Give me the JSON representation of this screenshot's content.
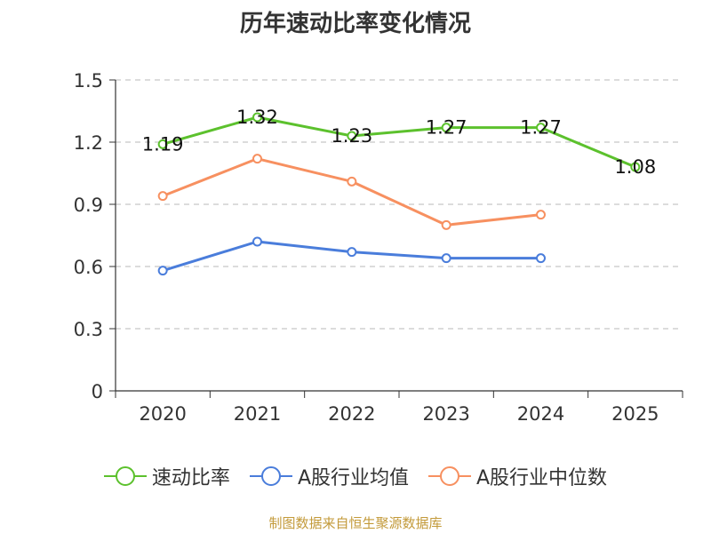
{
  "chart_data": {
    "type": "line",
    "title": "历年速动比率变化情况",
    "categories": [
      "2020",
      "2021",
      "2022",
      "2023",
      "2024",
      "2025"
    ],
    "ylim": [
      0,
      1.5
    ],
    "yticks": [
      "0",
      "0.3",
      "0.6",
      "0.9",
      "1.2",
      "1.5"
    ],
    "ytick_values": [
      0,
      0.3,
      0.6,
      0.9,
      1.2,
      1.5
    ],
    "grid": true,
    "legend_position": "bottom",
    "series": [
      {
        "name": "速动比率",
        "color": "#5cc12d",
        "values": [
          1.19,
          1.32,
          1.23,
          1.27,
          1.27,
          1.08
        ],
        "labels": [
          "1.19",
          "1.32",
          "1.23",
          "1.27",
          "1.27",
          "1.08"
        ]
      },
      {
        "name": "A股行业均值",
        "color": "#4a7ddb",
        "values": [
          0.58,
          0.72,
          0.67,
          0.64,
          0.64,
          null
        ]
      },
      {
        "name": "A股行业中位数",
        "color": "#f79060",
        "values": [
          0.94,
          1.12,
          1.01,
          0.8,
          0.85,
          null
        ]
      }
    ]
  },
  "source_note": "制图数据来自恒生聚源数据库"
}
